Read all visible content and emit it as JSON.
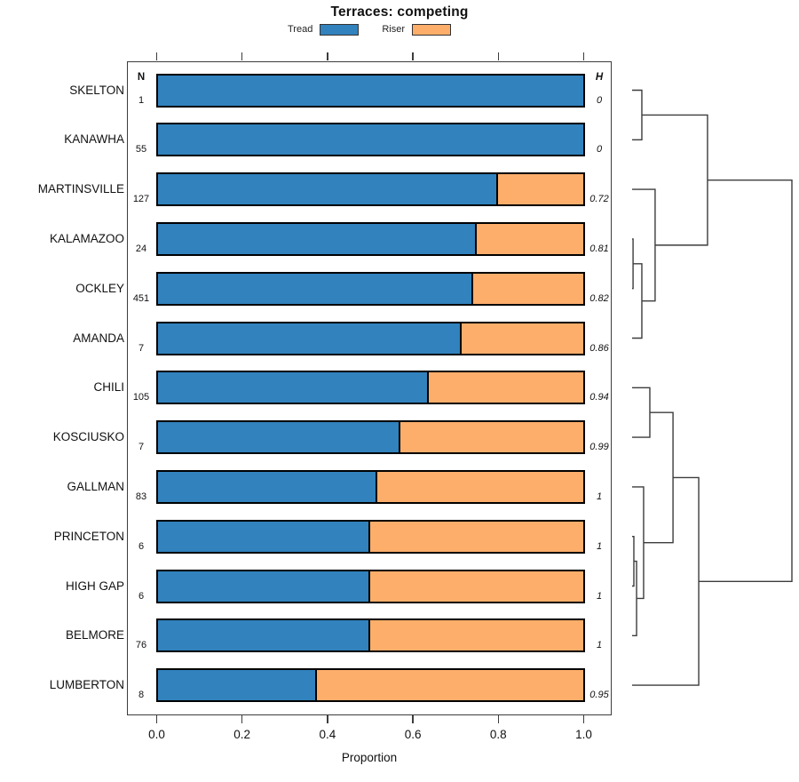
{
  "chart_data": {
    "type": "bar",
    "subtype": "horizontal stacked proportion bars with cluster dendrogram",
    "title": "Terraces: competing",
    "xlabel": "Proportion",
    "xlim": [
      0,
      1
    ],
    "x_ticks": [
      "0.0",
      "0.2",
      "0.4",
      "0.6",
      "0.8",
      "1.0"
    ],
    "grid": false,
    "legend_position": "top-center",
    "legend": [
      {
        "label": "Tread",
        "color": "#3182BD"
      },
      {
        "label": "Riser",
        "color": "#FDAE6B"
      }
    ],
    "columns": {
      "n": "N",
      "h": "H"
    },
    "bar_border_color": "#000000",
    "rows": [
      {
        "label": "SKELTON",
        "n": "1",
        "tread": 1.0,
        "riser": 0.0,
        "h": "0"
      },
      {
        "label": "KANAWHA",
        "n": "55",
        "tread": 1.0,
        "riser": 0.0,
        "h": "0"
      },
      {
        "label": "MARTINSVILLE",
        "n": "127",
        "tread": 0.8,
        "riser": 0.2,
        "h": "0.72"
      },
      {
        "label": "KALAMAZOO",
        "n": "24",
        "tread": 0.75,
        "riser": 0.25,
        "h": "0.81"
      },
      {
        "label": "OCKLEY",
        "n": "451",
        "tread": 0.743,
        "riser": 0.257,
        "h": "0.82"
      },
      {
        "label": "AMANDA",
        "n": "7",
        "tread": 0.714,
        "riser": 0.286,
        "h": "0.86"
      },
      {
        "label": "CHILI",
        "n": "105",
        "tread": 0.638,
        "riser": 0.362,
        "h": "0.94"
      },
      {
        "label": "KOSCIUSKO",
        "n": "7",
        "tread": 0.571,
        "riser": 0.429,
        "h": "0.99"
      },
      {
        "label": "GALLMAN",
        "n": "83",
        "tread": 0.516,
        "riser": 0.484,
        "h": "1"
      },
      {
        "label": "PRINCETON",
        "n": "6",
        "tread": 0.5,
        "riser": 0.5,
        "h": "1"
      },
      {
        "label": "HIGH GAP",
        "n": "6",
        "tread": 0.5,
        "riser": 0.5,
        "h": "1"
      },
      {
        "label": "BELMORE",
        "n": "76",
        "tread": 0.5,
        "riser": 0.5,
        "h": "1"
      },
      {
        "label": "LUMBERTON",
        "n": "8",
        "tread": 0.375,
        "riser": 0.625,
        "h": "0.95"
      }
    ],
    "dendrogram": {
      "side": "right",
      "line_color": "#3c3c3c",
      "merges": [
        {
          "a": "L0",
          "b": "L1",
          "h": 0.061
        },
        {
          "a": "L3",
          "b": "L4",
          "h": 0.006
        },
        {
          "a": "M1",
          "b": "L5",
          "h": 0.061
        },
        {
          "a": "L2",
          "b": "M2",
          "h": 0.144
        },
        {
          "a": "M0",
          "b": "M3",
          "h": 0.472
        },
        {
          "a": "L6",
          "b": "L7",
          "h": 0.111
        },
        {
          "a": "L9",
          "b": "L10",
          "h": 0.011
        },
        {
          "a": "M6",
          "b": "L11",
          "h": 0.028
        },
        {
          "a": "L8",
          "b": "M7",
          "h": 0.072
        },
        {
          "a": "M5",
          "b": "M8",
          "h": 0.256
        },
        {
          "a": "M9",
          "b": "L12",
          "h": 0.417
        },
        {
          "a": "M4",
          "b": "M10",
          "h": 1.0
        }
      ]
    }
  }
}
